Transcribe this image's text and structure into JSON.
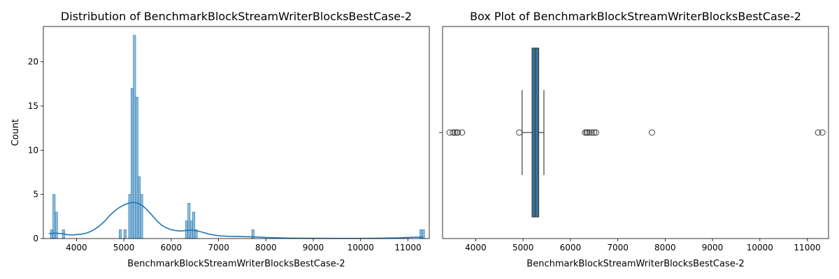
{
  "chart_data": [
    {
      "type": "histogram",
      "title": "Distribution of BenchmarkBlockStreamWriterBlocksBestCase-2",
      "xlabel": "BenchmarkBlockStreamWriterBlocksBestCase-2",
      "ylabel": "Count",
      "xlim": [
        3300,
        11450
      ],
      "ylim": [
        0,
        24
      ],
      "xticks": [
        4000,
        5000,
        6000,
        7000,
        8000,
        9000,
        10000,
        11000
      ],
      "yticks": [
        0,
        5,
        10,
        15,
        20
      ],
      "bar_color": "#1f77b4",
      "bin_width": 50,
      "bins": [
        {
          "x": 3450,
          "count": 1
        },
        {
          "x": 3500,
          "count": 5
        },
        {
          "x": 3550,
          "count": 3
        },
        {
          "x": 3700,
          "count": 1
        },
        {
          "x": 4900,
          "count": 1
        },
        {
          "x": 5000,
          "count": 1
        },
        {
          "x": 5100,
          "count": 5
        },
        {
          "x": 5150,
          "count": 17
        },
        {
          "x": 5200,
          "count": 23
        },
        {
          "x": 5250,
          "count": 16
        },
        {
          "x": 5300,
          "count": 7
        },
        {
          "x": 5350,
          "count": 5
        },
        {
          "x": 6300,
          "count": 2
        },
        {
          "x": 6350,
          "count": 4
        },
        {
          "x": 6400,
          "count": 2
        },
        {
          "x": 6450,
          "count": 3
        },
        {
          "x": 6500,
          "count": 1
        },
        {
          "x": 7700,
          "count": 1
        },
        {
          "x": 11250,
          "count": 1
        },
        {
          "x": 11300,
          "count": 1
        }
      ],
      "kde": [
        [
          3420,
          0.55
        ],
        [
          3500,
          0.6
        ],
        [
          3600,
          0.6
        ],
        [
          3700,
          0.55
        ],
        [
          3800,
          0.45
        ],
        [
          3900,
          0.4
        ],
        [
          4000,
          0.45
        ],
        [
          4100,
          0.5
        ],
        [
          4200,
          0.6
        ],
        [
          4300,
          0.8
        ],
        [
          4400,
          1.1
        ],
        [
          4500,
          1.5
        ],
        [
          4600,
          2.0
        ],
        [
          4700,
          2.6
        ],
        [
          4800,
          3.1
        ],
        [
          4900,
          3.5
        ],
        [
          5000,
          3.8
        ],
        [
          5100,
          4.0
        ],
        [
          5200,
          4.1
        ],
        [
          5300,
          4.0
        ],
        [
          5400,
          3.7
        ],
        [
          5500,
          3.2
        ],
        [
          5600,
          2.6
        ],
        [
          5700,
          2.0
        ],
        [
          5800,
          1.5
        ],
        [
          5900,
          1.2
        ],
        [
          6000,
          1.0
        ],
        [
          6100,
          0.9
        ],
        [
          6200,
          0.85
        ],
        [
          6300,
          0.9
        ],
        [
          6400,
          0.95
        ],
        [
          6500,
          0.9
        ],
        [
          6600,
          0.8
        ],
        [
          6700,
          0.65
        ],
        [
          6800,
          0.5
        ],
        [
          6900,
          0.4
        ],
        [
          7000,
          0.32
        ],
        [
          7200,
          0.25
        ],
        [
          7500,
          0.22
        ],
        [
          7700,
          0.2
        ],
        [
          8000,
          0.12
        ],
        [
          8500,
          0.05
        ],
        [
          9000,
          0.03
        ],
        [
          9500,
          0.02
        ],
        [
          10000,
          0.02
        ],
        [
          10500,
          0.05
        ],
        [
          10800,
          0.08
        ],
        [
          11000,
          0.12
        ],
        [
          11200,
          0.15
        ],
        [
          11320,
          0.15
        ]
      ]
    },
    {
      "type": "box",
      "title": "Box Plot of BenchmarkBlockStreamWriterBlocksBestCase-2",
      "xlabel": "BenchmarkBlockStreamWriterBlocksBestCase-2",
      "xlim": [
        3300,
        11450
      ],
      "xticks": [
        4000,
        5000,
        6000,
        7000,
        8000,
        9000,
        10000,
        11000
      ],
      "box_color": "#3274a1",
      "q1": 5190,
      "median": 5255,
      "q3": 5330,
      "whisker_low": 4980,
      "whisker_high": 5440,
      "outliers": [
        3450,
        3520,
        3560,
        3600,
        3620,
        3710,
        4920,
        6310,
        6340,
        6360,
        6400,
        6450,
        6500,
        6540,
        7720,
        11230,
        11320
      ]
    }
  ]
}
